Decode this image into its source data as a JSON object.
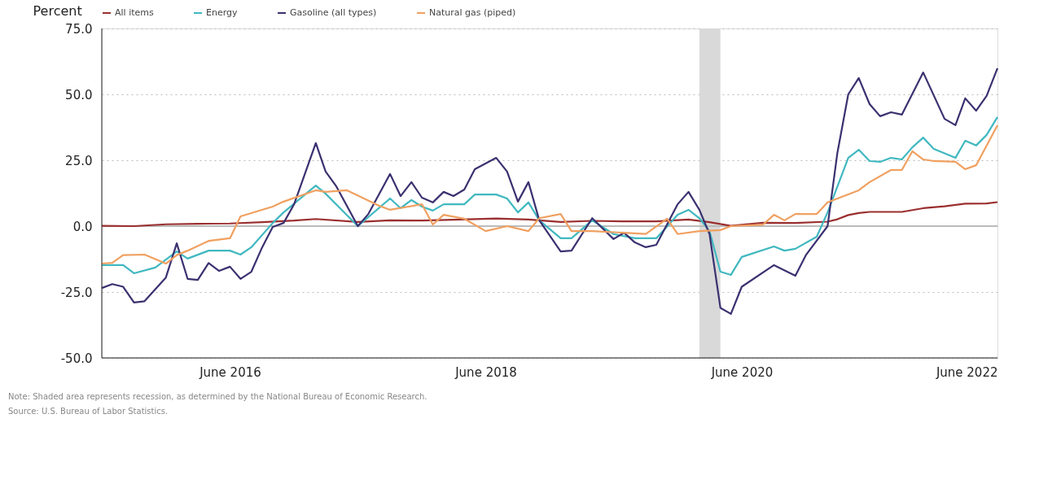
{
  "chart_data": {
    "type": "line",
    "ylabel": "Percent",
    "legend": "top left",
    "grid": "y",
    "line_style": "solid",
    "xlim": [
      "2015-06",
      "2022-06"
    ],
    "xticks": [
      {
        "value": "2016-06",
        "label": "June 2016"
      },
      {
        "value": "2018-06",
        "label": "June 2018"
      },
      {
        "value": "2020-06",
        "label": "June 2020"
      },
      {
        "value": "2022-06",
        "label": "June 2022"
      }
    ],
    "ylim": [
      -50,
      75
    ],
    "yticks": [
      {
        "value": -50,
        "label": "-50.0"
      },
      {
        "value": -25,
        "label": "-25.0"
      },
      {
        "value": 0,
        "label": "0.0"
      },
      {
        "value": 25,
        "label": "25.0"
      },
      {
        "value": 50,
        "label": "50.0"
      },
      {
        "value": 75,
        "label": "75.0"
      }
    ],
    "bands": [
      {
        "axis": "x",
        "from": "2020-02",
        "to": "2020-04",
        "color": "#d9d9d9"
      }
    ],
    "ref_lines": [
      {
        "axis": "y",
        "value": 0,
        "color": "#bbbbbb"
      }
    ],
    "annotations": [
      "Note: Shaded area represents recession, as determined by the National Bureau of Economic Research.",
      "Source: U.S. Bureau of Labor Statistics."
    ],
    "series": [
      {
        "name": "All items",
        "color": "#9b2f2f",
        "x": [
          "2015-06",
          "2015-09",
          "2015-12",
          "2016-03",
          "2016-06",
          "2016-09",
          "2016-12",
          "2017-02",
          "2017-06",
          "2017-09",
          "2017-12",
          "2018-03",
          "2018-07",
          "2018-10",
          "2019-01",
          "2019-04",
          "2019-07",
          "2019-10",
          "2020-01",
          "2020-03",
          "2020-05",
          "2020-08",
          "2020-11",
          "2021-02",
          "2021-03",
          "2021-04",
          "2021-05",
          "2021-06",
          "2021-09",
          "2021-11",
          "2022-01",
          "2022-03",
          "2022-05",
          "2022-06"
        ],
        "values": [
          0.1,
          0.0,
          0.7,
          0.9,
          1.0,
          1.5,
          2.1,
          2.7,
          1.6,
          2.2,
          2.1,
          2.4,
          2.9,
          2.5,
          1.6,
          2.0,
          1.8,
          1.8,
          2.5,
          1.5,
          0.1,
          1.3,
          1.2,
          1.7,
          2.6,
          4.2,
          5.0,
          5.4,
          5.4,
          6.8,
          7.5,
          8.5,
          8.6,
          9.1
        ]
      },
      {
        "name": "Energy",
        "color": "#40b8c0",
        "x": [
          "2015-06",
          "2015-08",
          "2015-09",
          "2015-11",
          "2016-01",
          "2016-02",
          "2016-04",
          "2016-06",
          "2016-07",
          "2016-08",
          "2016-10",
          "2016-11",
          "2017-02",
          "2017-03",
          "2017-06",
          "2017-09",
          "2017-10",
          "2017-11",
          "2017-12",
          "2018-01",
          "2018-02",
          "2018-04",
          "2018-05",
          "2018-07",
          "2018-08",
          "2018-09",
          "2018-10",
          "2018-11",
          "2019-01",
          "2019-02",
          "2019-04",
          "2019-06",
          "2019-08",
          "2019-10",
          "2019-12",
          "2020-01",
          "2020-02",
          "2020-03",
          "2020-04",
          "2020-05",
          "2020-06",
          "2020-09",
          "2020-10",
          "2020-11",
          "2021-01",
          "2021-02",
          "2021-04",
          "2021-05",
          "2021-06",
          "2021-07",
          "2021-08",
          "2021-09",
          "2021-10",
          "2021-11",
          "2021-12",
          "2022-02",
          "2022-03",
          "2022-04",
          "2022-05",
          "2022-06"
        ],
        "values": [
          -14.8,
          -14.8,
          -17.9,
          -15.7,
          -9.6,
          -12.3,
          -9.3,
          -9.3,
          -10.8,
          -8,
          1.2,
          5.2,
          15.4,
          12.3,
          0,
          10.5,
          6.8,
          9.9,
          7.4,
          5.9,
          8.3,
          8.3,
          12,
          12,
          10.5,
          5.2,
          9,
          2.2,
          -4.6,
          -4.6,
          2.2,
          -3,
          -4.6,
          -4.6,
          4.3,
          6.2,
          3,
          -1.9,
          -17.3,
          -18.5,
          -11.7,
          -7.7,
          -9.3,
          -8.6,
          -4,
          5.2,
          25.9,
          29,
          24.7,
          24.4,
          25.9,
          25.3,
          29.9,
          33.6,
          29.3,
          25.9,
          32.4,
          30.6,
          34.6,
          41.4
        ]
      },
      {
        "name": "Gasoline (all types)",
        "color": "#3b3170",
        "x": [
          "2015-06",
          "2015-07",
          "2015-08",
          "2015-09",
          "2015-10",
          "2015-12",
          "2016-01",
          "2016-02",
          "2016-03",
          "2016-04",
          "2016-05",
          "2016-06",
          "2016-07",
          "2016-08",
          "2016-09",
          "2016-10",
          "2016-11",
          "2016-12",
          "2017-02",
          "2017-03",
          "2017-04",
          "2017-06",
          "2017-07",
          "2017-09",
          "2017-10",
          "2017-11",
          "2017-12",
          "2018-01",
          "2018-02",
          "2018-03",
          "2018-04",
          "2018-05",
          "2018-07",
          "2018-08",
          "2018-09",
          "2018-10",
          "2018-11",
          "2019-01",
          "2019-02",
          "2019-04",
          "2019-06",
          "2019-07",
          "2019-08",
          "2019-09",
          "2019-10",
          "2019-12",
          "2020-01",
          "2020-02",
          "2020-03",
          "2020-04",
          "2020-05",
          "2020-06",
          "2020-09",
          "2020-11",
          "2020-12",
          "2021-02",
          "2021-03",
          "2021-04",
          "2021-05",
          "2021-06",
          "2021-07",
          "2021-08",
          "2021-09",
          "2021-11",
          "2022-01",
          "2022-02",
          "2022-03",
          "2022-04",
          "2022-05",
          "2022-06"
        ],
        "values": [
          -23.5,
          -22,
          -23,
          -29,
          -28.5,
          -19.5,
          -6.5,
          -20,
          -20.4,
          -14,
          -17,
          -15.4,
          -20,
          -17.3,
          -8,
          -0.3,
          1.2,
          8.3,
          31.5,
          20.7,
          15,
          0,
          4.6,
          19.8,
          11.4,
          16.7,
          10.8,
          9,
          13,
          11.4,
          13.9,
          21.6,
          25.9,
          20.7,
          9.3,
          16.7,
          2.2,
          -9.6,
          -9.3,
          3,
          -4.9,
          -2.5,
          -6.2,
          -8,
          -7.1,
          8.3,
          13,
          6.2,
          -3,
          -31,
          -33.3,
          -23,
          -14.8,
          -18.8,
          -11,
          0,
          27.8,
          50,
          56.2,
          46.3,
          41.7,
          43.2,
          42.3,
          58.3,
          40.7,
          38.3,
          48.5,
          43.8,
          49.4,
          59.9
        ]
      },
      {
        "name": "Natural gas (piped)",
        "color": "#f0a060",
        "x": [
          "2015-06",
          "2015-07",
          "2015-08",
          "2015-10",
          "2015-12",
          "2016-01",
          "2016-02",
          "2016-04",
          "2016-06",
          "2016-07",
          "2016-10",
          "2016-11",
          "2017-02",
          "2017-03",
          "2017-05",
          "2017-08",
          "2017-09",
          "2017-12",
          "2018-01",
          "2018-02",
          "2018-04",
          "2018-06",
          "2018-08",
          "2018-10",
          "2018-11",
          "2019-01",
          "2019-02",
          "2019-04",
          "2019-07",
          "2019-09",
          "2019-11",
          "2019-12",
          "2020-02",
          "2020-04",
          "2020-05",
          "2020-08",
          "2020-09",
          "2020-10",
          "2020-11",
          "2021-01",
          "2021-02",
          "2021-05",
          "2021-06",
          "2021-08",
          "2021-09",
          "2021-10",
          "2021-11",
          "2021-12",
          "2022-02",
          "2022-03",
          "2022-04",
          "2022-06"
        ],
        "values": [
          -14.2,
          -13.9,
          -11,
          -10.8,
          -14.2,
          -11,
          -9.3,
          -5.6,
          -4.6,
          3.7,
          7.4,
          9.3,
          13.6,
          13,
          13.6,
          7.7,
          6.2,
          8.3,
          0.6,
          4.3,
          2.8,
          -1.9,
          0,
          -1.9,
          3,
          4.6,
          -1.9,
          -1.9,
          -2.5,
          -3,
          2.8,
          -3,
          -1.9,
          -1.5,
          0,
          0.6,
          4.3,
          2.2,
          4.6,
          4.6,
          9,
          13.6,
          16.7,
          21.3,
          21.3,
          28.4,
          25.3,
          24.7,
          24.4,
          21.6,
          23.1,
          38.3
        ]
      }
    ]
  }
}
